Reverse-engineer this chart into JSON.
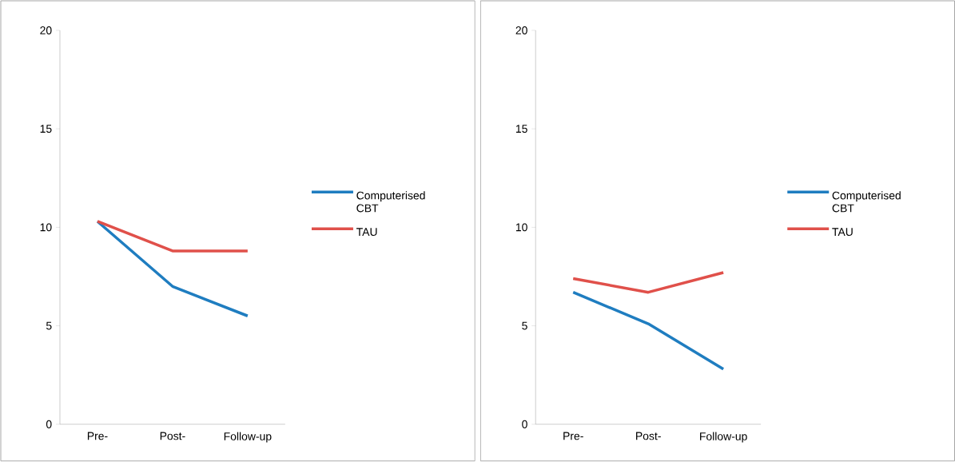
{
  "chart_data": [
    {
      "type": "line",
      "categories": [
        "Pre-",
        "Post-",
        "Follow-up"
      ],
      "ylim": [
        0,
        20
      ],
      "yticks": [
        0,
        5,
        10,
        15,
        20
      ],
      "legend": "right",
      "grid": false,
      "series": [
        {
          "name": "Computerised CBT",
          "color": "#1f7dc0",
          "values": [
            10.3,
            7.0,
            5.5
          ]
        },
        {
          "name": "TAU",
          "color": "#e0504a",
          "values": [
            10.3,
            8.8,
            8.8
          ]
        }
      ]
    },
    {
      "type": "line",
      "categories": [
        "Pre-",
        "Post-",
        "Follow-up"
      ],
      "ylim": [
        0,
        20
      ],
      "yticks": [
        0,
        5,
        10,
        15,
        20
      ],
      "legend": "right",
      "grid": false,
      "series": [
        {
          "name": "Computerised CBT",
          "color": "#1f7dc0",
          "values": [
            6.7,
            5.1,
            2.8
          ]
        },
        {
          "name": "TAU",
          "color": "#e0504a",
          "values": [
            7.4,
            6.7,
            7.7
          ]
        }
      ]
    }
  ]
}
